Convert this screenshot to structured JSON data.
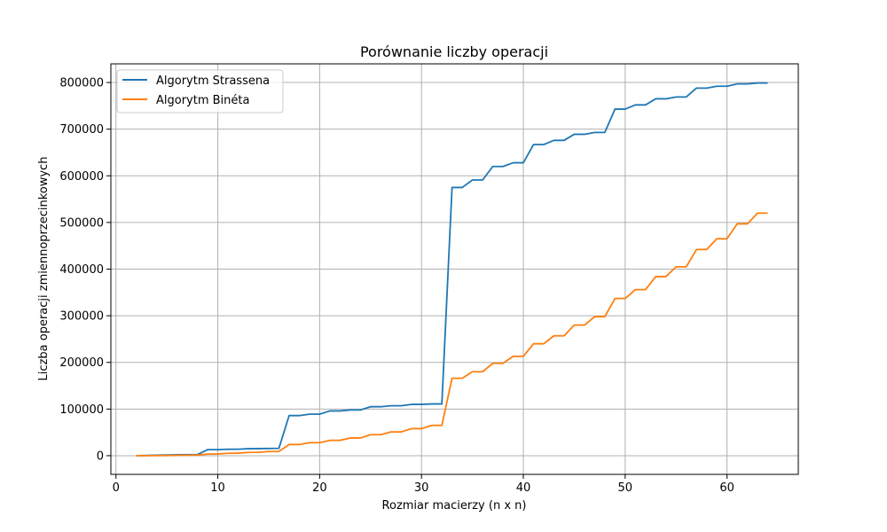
{
  "chart_data": {
    "type": "line",
    "title": "Porównanie liczby operacji",
    "xlabel": "Rozmiar macierzy (n x n)",
    "ylabel": "Liczba operacji zmiennoprzecinkowych",
    "xlim": [
      -0.5,
      67.0
    ],
    "ylim": [
      -40000,
      840000
    ],
    "xticks": [
      0,
      10,
      20,
      30,
      40,
      50,
      60
    ],
    "yticks": [
      0,
      100000,
      200000,
      300000,
      400000,
      500000,
      600000,
      700000,
      800000
    ],
    "grid": true,
    "legend_position": "upper-left",
    "x": [
      2,
      3,
      4,
      5,
      6,
      7,
      8,
      9,
      10,
      11,
      12,
      13,
      14,
      15,
      16,
      17,
      18,
      19,
      20,
      21,
      22,
      23,
      24,
      25,
      26,
      27,
      28,
      29,
      30,
      31,
      32,
      33,
      34,
      35,
      36,
      37,
      38,
      39,
      40,
      41,
      42,
      43,
      44,
      45,
      46,
      47,
      48,
      49,
      50,
      51,
      52,
      53,
      54,
      55,
      56,
      57,
      58,
      59,
      60,
      61,
      62,
      63,
      64
    ],
    "series": [
      {
        "name": "Algorytm Strassena",
        "color": "#1f77b4",
        "values": [
          100,
          500,
          1000,
          1600,
          1900,
          2200,
          2400,
          13000,
          13000,
          13800,
          14000,
          15000,
          15200,
          15500,
          15800,
          86000,
          86000,
          89000,
          89000,
          96000,
          96000,
          98000,
          98000,
          105000,
          105000,
          107000,
          107000,
          110000,
          110000,
          111000,
          111000,
          575000,
          575000,
          591000,
          591000,
          620000,
          620000,
          628000,
          628000,
          667000,
          667000,
          676000,
          676000,
          689000,
          689000,
          693000,
          693000,
          743000,
          743000,
          752000,
          752000,
          765000,
          765000,
          769000,
          769000,
          788000,
          788000,
          792000,
          792000,
          797000,
          797000,
          799000,
          799000
        ]
      },
      {
        "name": "Algorytm Binéta",
        "color": "#ff7f0e",
        "values": [
          0,
          100,
          200,
          500,
          800,
          1100,
          1500,
          3500,
          3800,
          5100,
          5500,
          7000,
          7300,
          9000,
          9200,
          24000,
          24000,
          28000,
          28000,
          33000,
          33000,
          38000,
          38000,
          45000,
          45000,
          51000,
          51000,
          58000,
          58000,
          65000,
          65000,
          166000,
          166000,
          180000,
          180000,
          198000,
          198000,
          213000,
          213000,
          240000,
          240000,
          257000,
          257000,
          280000,
          280000,
          298000,
          298000,
          337000,
          337000,
          356000,
          356000,
          384000,
          384000,
          405000,
          405000,
          442000,
          442000,
          465000,
          465000,
          497000,
          497000,
          520000,
          520000
        ]
      }
    ]
  }
}
